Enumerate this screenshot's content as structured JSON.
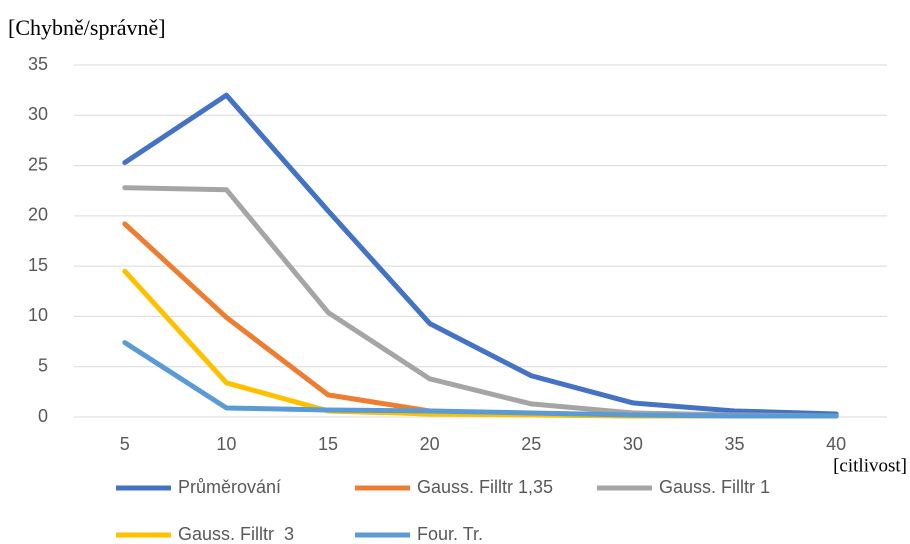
{
  "chart_data": {
    "type": "line",
    "y_label": "[Chybně/správně]",
    "x_label": "[citlivost]",
    "categories": [
      "5",
      "10",
      "15",
      "20",
      "25",
      "30",
      "35",
      "40"
    ],
    "series": [
      {
        "name": "Průměrování",
        "color": "#4472c4",
        "values": [
          25.3,
          32,
          20.5,
          9.3,
          4.1,
          1.4,
          0.6,
          0.3
        ]
      },
      {
        "name": "Gauss. Filltr 1,35",
        "color": "#ed7d31",
        "values": [
          19.2,
          9.9,
          2.2,
          0.6,
          0.3,
          0.1,
          0.1,
          0.1
        ]
      },
      {
        "name": "Gauss. Filltr 1",
        "color": "#a5a5a5",
        "values": [
          22.8,
          22.6,
          10.4,
          3.8,
          1.3,
          0.4,
          0.2,
          0.1
        ]
      },
      {
        "name": "Gauss. Filltr  3",
        "color": "#ffc000",
        "values": [
          14.5,
          3.4,
          0.6,
          0.3,
          0.2,
          0.1,
          0.1,
          0.1
        ]
      },
      {
        "name": "Four. Tr.",
        "color": "#5b9bd5",
        "values": [
          7.4,
          0.9,
          0.7,
          0.6,
          0.4,
          0.2,
          0.1,
          0.1
        ]
      }
    ],
    "ylim": [
      0,
      35
    ],
    "yticks": [
      0,
      5,
      10,
      15,
      20,
      25,
      30,
      35
    ],
    "grid": true,
    "legend": "bottom"
  }
}
